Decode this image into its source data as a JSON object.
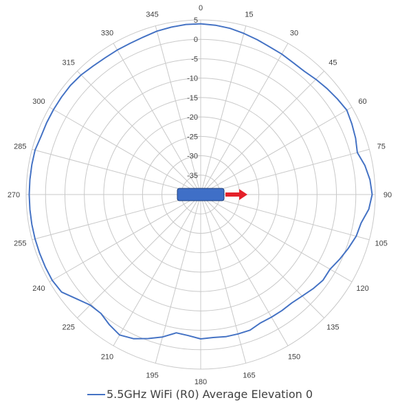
{
  "chart_data": {
    "type": "polar-line",
    "angles_deg": [
      0,
      15,
      30,
      45,
      60,
      75,
      90,
      105,
      120,
      135,
      150,
      165,
      180,
      195,
      210,
      225,
      240,
      255,
      270,
      285,
      300,
      315,
      330,
      345
    ],
    "angle_labels": [
      "0",
      "15",
      "30",
      "45",
      "60",
      "75",
      "90",
      "105",
      "120",
      "135",
      "150",
      "165",
      "180",
      "195",
      "210",
      "225",
      "240",
      "255",
      "270",
      "285",
      "300",
      "315",
      "330",
      "345"
    ],
    "radial_ticks": [
      5,
      0,
      -5,
      -10,
      -15,
      -20,
      -25,
      -30,
      -35
    ],
    "radial_tick_labels": [
      "5",
      "0",
      "-5",
      "-10",
      "-15",
      "-20",
      "-25",
      "-30",
      "-35"
    ],
    "rlim": [
      -40,
      5
    ],
    "grid": true,
    "legend_position": "bottom",
    "series": [
      {
        "name": "5.5GHz WiFi (R0) Average Elevation 0",
        "color": "#4472c4",
        "angles": [
          0,
          5,
          10,
          15,
          20,
          25,
          30,
          35,
          40,
          45,
          50,
          55,
          60,
          65,
          70,
          75,
          80,
          85,
          90,
          95,
          100,
          105,
          110,
          115,
          120,
          125,
          130,
          135,
          140,
          145,
          150,
          155,
          160,
          165,
          170,
          175,
          180,
          185,
          190,
          195,
          200,
          205,
          210,
          215,
          220,
          225,
          230,
          235,
          240,
          245,
          250,
          255,
          260,
          265,
          270,
          275,
          280,
          285,
          290,
          295,
          300,
          305,
          310,
          315,
          320,
          325,
          330,
          335,
          340,
          345,
          350,
          355
        ],
        "values": [
          4,
          3.8,
          3.5,
          3,
          2.5,
          2,
          1.8,
          1.5,
          1.5,
          2,
          2.5,
          3,
          3.5,
          3,
          2.5,
          1.8,
          3,
          3.8,
          4.2,
          3.5,
          2,
          1.5,
          0.5,
          -0.5,
          -1.5,
          -1.5,
          -2.2,
          -3,
          -3.5,
          -3.5,
          -3.5,
          -3.5,
          -2.8,
          -2.8,
          -2.8,
          -3,
          -2.8,
          -3.5,
          -3.8,
          -2,
          -0.5,
          1,
          1.8,
          1,
          0,
          0.3,
          1.8,
          3.8,
          4.2,
          4.2,
          4.2,
          4.2,
          4.2,
          4.2,
          4.2,
          4.2,
          4.2,
          4.2,
          3.8,
          3.8,
          3.8,
          3.8,
          3.8,
          3.6,
          3.2,
          3,
          3,
          3,
          3.2,
          3.6,
          3.8,
          4
        ]
      }
    ],
    "annotations": [
      {
        "type": "device-bar",
        "color": "#3f6fc7"
      },
      {
        "type": "direction-arrow",
        "color": "#e4212a",
        "points_to": "90"
      }
    ]
  },
  "legend": {
    "label": "5.5GHz WiFi (R0) Average Elevation 0",
    "color": "#4472c4"
  }
}
